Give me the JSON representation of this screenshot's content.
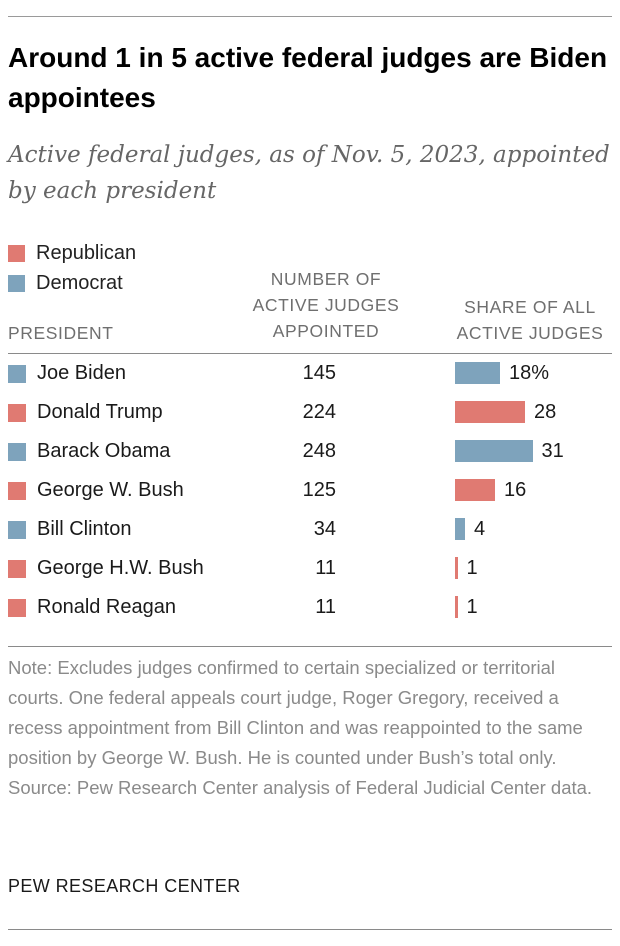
{
  "chart_data": {
    "type": "table",
    "title": "Around 1 in 5 active federal judges are Biden appointees",
    "subtitle": "Active federal judges, as of Nov. 5, 2023, appointed by each president",
    "legend": [
      {
        "name": "Republican",
        "color": "#e07a72"
      },
      {
        "name": "Democrat",
        "color": "#7ea3bc"
      }
    ],
    "columns": {
      "president": "PRESIDENT",
      "count_line1": "NUMBER OF",
      "count_line2": "ACTIVE JUDGES",
      "count_line3": "APPOINTED",
      "share_line1": "SHARE OF ALL",
      "share_line2": "ACTIVE JUDGES"
    },
    "rows": [
      {
        "president": "Joe Biden",
        "party": "Democrat",
        "count": "145",
        "share": 18,
        "share_label": "18%"
      },
      {
        "president": "Donald Trump",
        "party": "Republican",
        "count": "224",
        "share": 28,
        "share_label": "28"
      },
      {
        "president": "Barack Obama",
        "party": "Democrat",
        "count": "248",
        "share": 31,
        "share_label": "31"
      },
      {
        "president": "George W. Bush",
        "party": "Republican",
        "count": "125",
        "share": 16,
        "share_label": "16"
      },
      {
        "president": "Bill Clinton",
        "party": "Democrat",
        "count": "34",
        "share": 4,
        "share_label": "4"
      },
      {
        "president": "George H.W. Bush",
        "party": "Republican",
        "count": "11",
        "share": 1,
        "share_label": "1"
      },
      {
        "president": "Ronald Reagan",
        "party": "Republican",
        "count": "11",
        "share": 1,
        "share_label": "1"
      }
    ],
    "note": "Note: Excludes judges confirmed to certain specialized or territorial courts. One federal appeals court judge, Roger Gregory, received a recess appointment from Bill Clinton and was reappointed to the same position by George W. Bush. He is counted under Bush’s total only.",
    "source": "Source: Pew Research Center analysis of Federal Judicial Center data."
  },
  "branding": "PEW RESEARCH CENTER"
}
